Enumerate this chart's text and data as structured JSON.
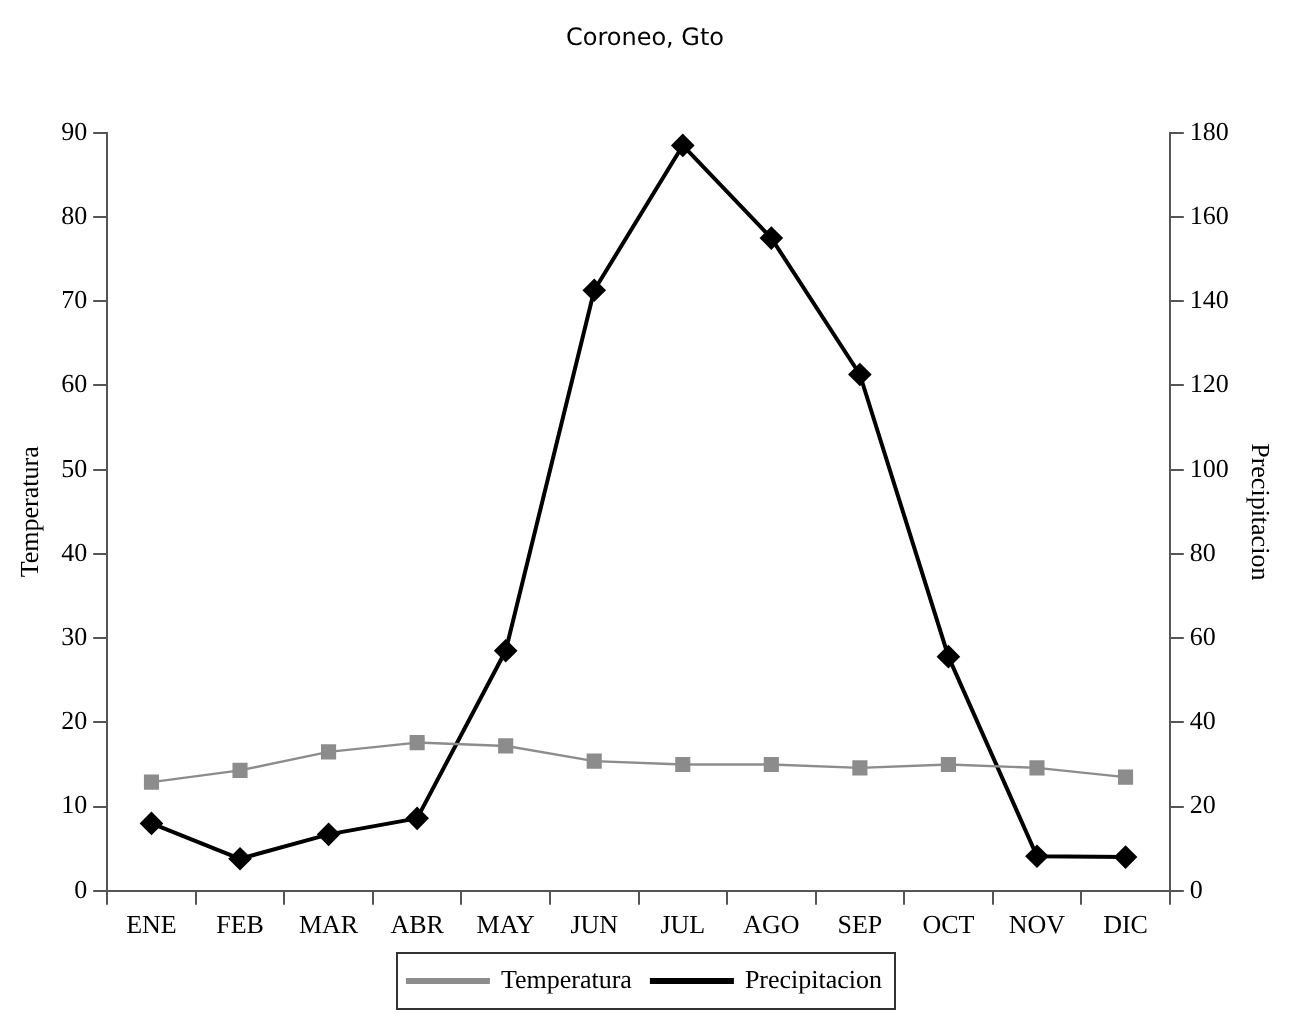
{
  "chart_data": {
    "type": "line",
    "title": "Coroneo, Gto",
    "ylabel": "Temperatura",
    "y2label": "Precipitacion",
    "categories": [
      "ENE",
      "FEB",
      "MAR",
      "ABR",
      "MAY",
      "JUN",
      "JUL",
      "AGO",
      "SEP",
      "OCT",
      "NOV",
      "DIC"
    ],
    "series": [
      {
        "name": "Temperatura",
        "color": "#8c8c8c",
        "marker": "square",
        "values": [
          12.9,
          14.3,
          16.5,
          17.6,
          17.2,
          15.4,
          15.0,
          15.0,
          14.6,
          15.0,
          14.6,
          13.5
        ]
      },
      {
        "name": "Precipitacion",
        "color": "#000000",
        "marker": "diamond",
        "axis": "y2",
        "values": [
          16,
          7.6,
          13.4,
          17.2,
          57,
          142.6,
          177,
          155,
          122.6,
          55.6,
          8.2,
          8
        ]
      }
    ],
    "ylim": [
      0,
      90
    ],
    "yticks": [
      0,
      10,
      20,
      30,
      40,
      50,
      60,
      70,
      80,
      90
    ],
    "y2lim": [
      0,
      180
    ],
    "y2ticks": [
      0,
      20,
      40,
      60,
      80,
      100,
      120,
      140,
      160,
      180
    ],
    "legend": "bottom",
    "line_style": "solid"
  }
}
